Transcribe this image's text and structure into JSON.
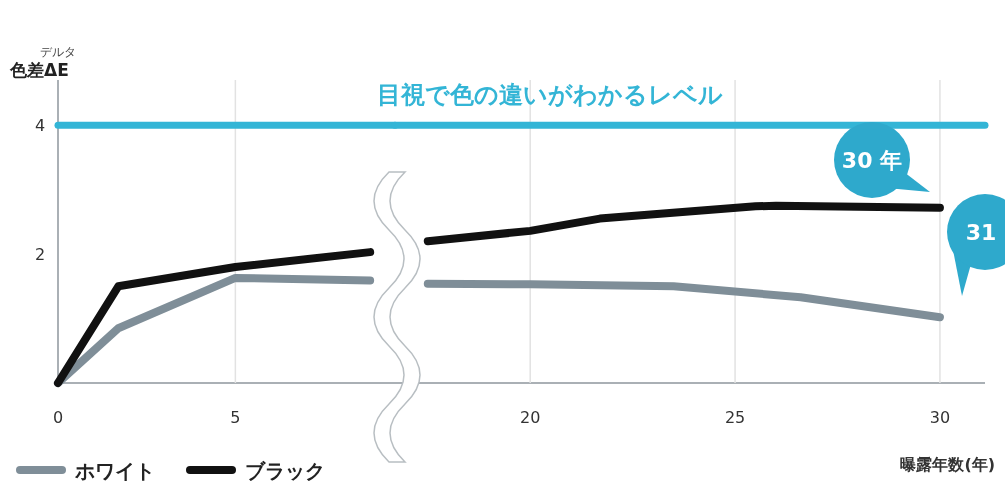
{
  "chart_data": [
    {
      "type": "line",
      "ylabel": "色差ΔE",
      "annotations": [
        "デルタ"
      ],
      "xlim": [
        0,
        9.5
      ],
      "xticks": [
        0,
        5
      ],
      "ylim": [
        0,
        4.7
      ],
      "yticks": [
        2,
        4
      ],
      "legend": "bottom left",
      "ref_lines": [
        {
          "axis": "x",
          "value": 5,
          "color": "#e2e2e2"
        },
        {
          "axis": "y",
          "value": 4,
          "color": "#33b5d6"
        }
      ],
      "series": [
        {
          "name": "ホワイト",
          "color": "#7f8e98",
          "x": [
            0,
            1.7,
            5,
            8.8
          ],
          "values": [
            0,
            0.85,
            1.63,
            1.59
          ]
        },
        {
          "name": "ブラック",
          "color": "#111111",
          "x": [
            0,
            1.7,
            5,
            8.8
          ],
          "values": [
            0,
            1.5,
            1.8,
            2.03
          ]
        }
      ]
    },
    {
      "type": "line",
      "xlabel": "曝露年数(年)",
      "xlim": [
        16.7,
        31.1
      ],
      "xticks": [
        20,
        25,
        30
      ],
      "ylim": [
        0,
        4.7
      ],
      "tick_labels": "x",
      "grid": "x",
      "ref_lines": [
        {
          "axis": "y",
          "value": 4,
          "label": "目視で色の違いがわかるレベル",
          "color": "#33b5d6"
        }
      ],
      "annotations": [
        "30 年",
        "31"
      ],
      "series": [
        {
          "color": "#7f8e98",
          "x": [
            17.5,
            20,
            23.5,
            26.6,
            30
          ],
          "values": [
            1.54,
            1.53,
            1.5,
            1.33,
            1.02
          ]
        },
        {
          "color": "#111111",
          "x": [
            17.5,
            20,
            21.7,
            25.5,
            26,
            30
          ],
          "values": [
            2.2,
            2.36,
            2.55,
            2.74,
            2.75,
            2.72
          ]
        }
      ]
    }
  ]
}
